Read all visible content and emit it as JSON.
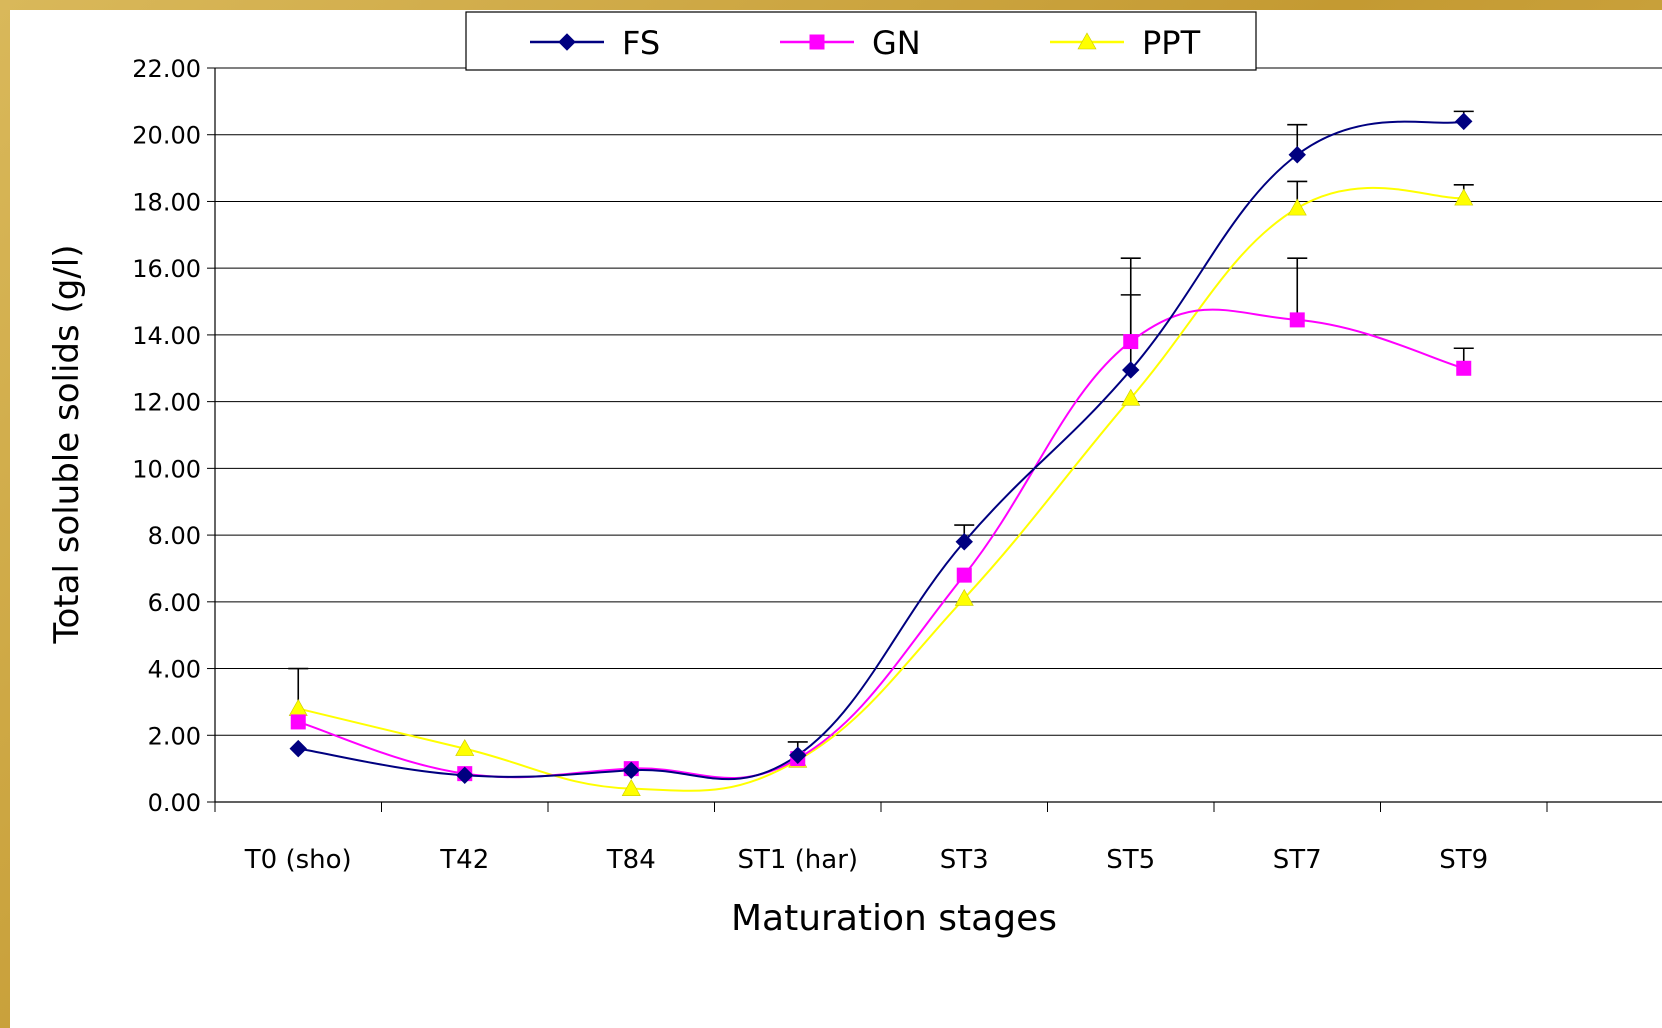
{
  "chart_data": {
    "type": "line",
    "xlabel": "Maturation stages",
    "ylabel": "Total soluble solids (g/l)",
    "categories": [
      "T0 (sho)",
      "T42",
      "T84",
      "ST1 (har)",
      "ST3",
      "ST5",
      "ST7",
      "ST9"
    ],
    "ylim": [
      0,
      22
    ],
    "yticks": [
      "0.00",
      "2.00",
      "4.00",
      "6.00",
      "8.00",
      "10.00",
      "12.00",
      "14.00",
      "16.00",
      "18.00",
      "20.00",
      "22.00"
    ],
    "grid": "horizontal",
    "legend_position": "top",
    "series": [
      {
        "name": "FS",
        "color": "#000080",
        "marker": "diamond",
        "values": [
          1.6,
          0.8,
          0.95,
          1.4,
          7.8,
          12.95,
          19.4,
          20.4
        ],
        "error_upper": [
          null,
          null,
          null,
          1.8,
          8.3,
          15.2,
          20.3,
          20.7
        ]
      },
      {
        "name": "GN",
        "color": "#ff00ff",
        "marker": "square",
        "values": [
          2.4,
          0.85,
          1.0,
          1.3,
          6.8,
          13.8,
          14.45,
          13.0
        ],
        "error_upper": [
          null,
          null,
          null,
          null,
          null,
          16.3,
          16.3,
          13.6
        ]
      },
      {
        "name": "PPT",
        "color": "#ffff00",
        "marker": "triangle",
        "values": [
          2.8,
          1.6,
          0.4,
          1.25,
          6.1,
          12.1,
          17.8,
          18.1
        ],
        "error_upper": [
          4.0,
          null,
          null,
          null,
          null,
          null,
          18.6,
          18.5
        ]
      }
    ]
  }
}
